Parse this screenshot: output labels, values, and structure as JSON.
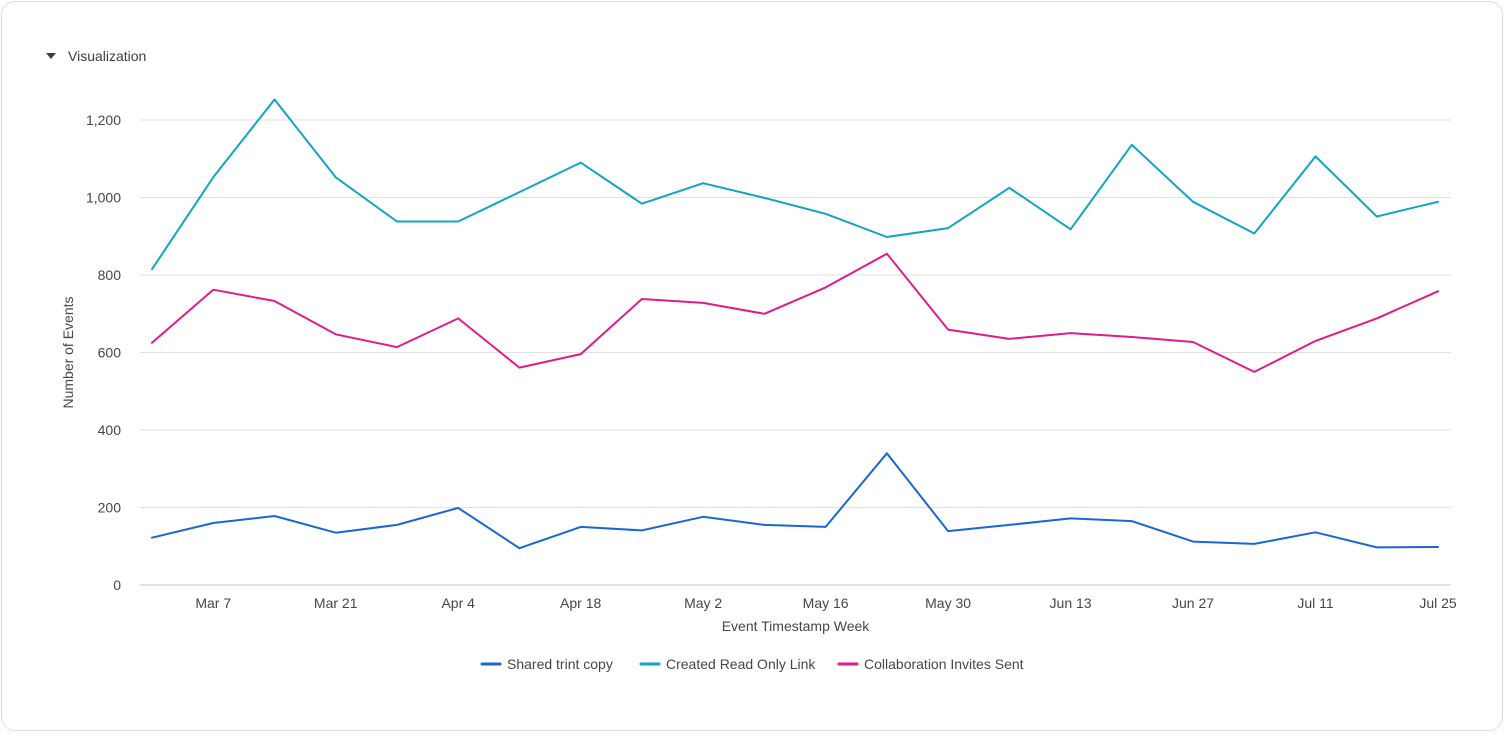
{
  "section": {
    "title": "Visualization"
  },
  "colors": {
    "grid": "#e0e0e0",
    "axis": "#c4c7c5",
    "text": "#444746"
  },
  "chart_data": {
    "type": "line",
    "title": "",
    "xlabel": "Event Timestamp Week",
    "ylabel": "Number of Events",
    "ylim": [
      0,
      1300
    ],
    "y_ticks": [
      0,
      200,
      400,
      600,
      800,
      1000,
      1200
    ],
    "y_tick_labels": [
      "0",
      "200",
      "400",
      "600",
      "800",
      "1,000",
      "1,200"
    ],
    "x": [
      "Feb 28",
      "Mar 7",
      "Mar 14",
      "Mar 21",
      "Mar 28",
      "Apr 4",
      "Apr 11",
      "Apr 18",
      "Apr 25",
      "May 2",
      "May 9",
      "May 16",
      "May 23",
      "May 30",
      "Jun 6",
      "Jun 13",
      "Jun 20",
      "Jun 27",
      "Jul 4",
      "Jul 11",
      "Jul 18",
      "Jul 25"
    ],
    "x_tick_labels": [
      "Mar 7",
      "Mar 21",
      "Apr 4",
      "Apr 18",
      "May 2",
      "May 16",
      "May 30",
      "Jun 13",
      "Jun 27",
      "Jul 11",
      "Jul 25"
    ],
    "x_tick_indices": [
      1,
      3,
      5,
      7,
      9,
      11,
      13,
      15,
      17,
      19,
      21
    ],
    "legend_position": "bottom",
    "series": [
      {
        "name": "Shared trint copy",
        "color": "#1967d2",
        "values": [
          122,
          160,
          178,
          135,
          155,
          199,
          95,
          150,
          141,
          176,
          155,
          150,
          340,
          139,
          155,
          172,
          165,
          112,
          106,
          136,
          97,
          98
        ]
      },
      {
        "name": "Created Read Only Link",
        "color": "#12a4c0",
        "values": [
          815,
          1052,
          1253,
          1052,
          938,
          938,
          1014,
          1090,
          984,
          1037,
          999,
          958,
          898,
          921,
          1025,
          918,
          1136,
          989,
          907,
          1106,
          951,
          989
        ]
      },
      {
        "name": "Collaboration Invites Sent",
        "color": "#e01b8c",
        "values": [
          625,
          762,
          733,
          647,
          614,
          688,
          561,
          596,
          738,
          728,
          700,
          768,
          855,
          659,
          635,
          650,
          640,
          627,
          550,
          630,
          688,
          758
        ]
      }
    ]
  }
}
